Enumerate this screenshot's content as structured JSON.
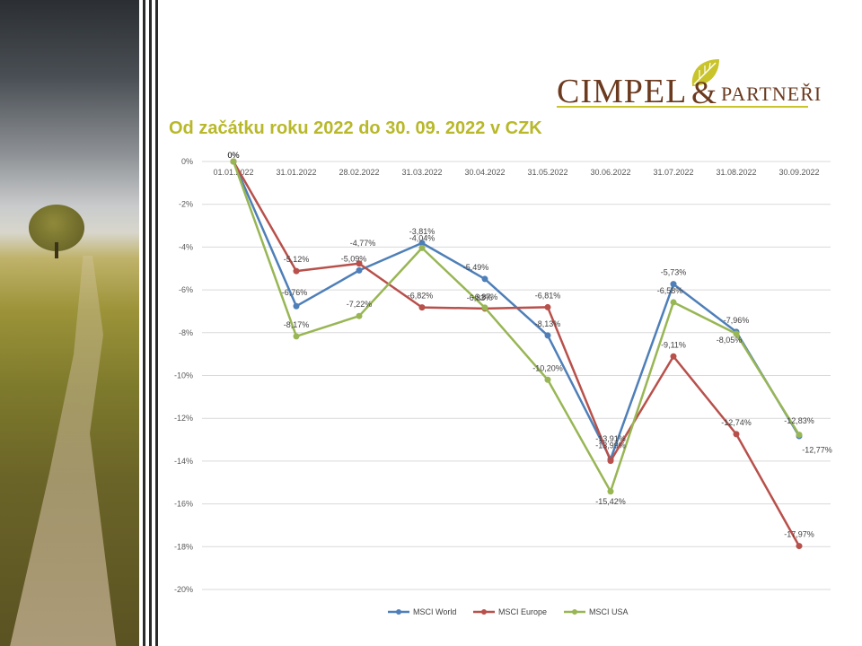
{
  "title": "Od začátku roku 2022 do 30. 09. 2022 v CZK",
  "logo": {
    "brand": "CIMPEL",
    "ampersand": "&",
    "suffix": "PARTNEŘI"
  },
  "colors": {
    "title": "#b8b82a",
    "brand": "#6b3a1f",
    "world": "#4e7fb8",
    "europe": "#b8504b",
    "usa": "#98b654",
    "grid": "#d9d9d9"
  },
  "chart_data": {
    "type": "line",
    "title": "",
    "xlabel": "",
    "ylabel": "",
    "ylim": [
      -20,
      0
    ],
    "y_ticks": [
      0,
      -2,
      -4,
      -6,
      -8,
      -10,
      -12,
      -14,
      -16,
      -18,
      -20
    ],
    "y_tick_labels": [
      "0%",
      "-2%",
      "-4%",
      "-6%",
      "-8%",
      "-10%",
      "-12%",
      "-14%",
      "-16%",
      "-18%",
      "-20%"
    ],
    "categories": [
      "01.01.2022",
      "31.01.2022",
      "28.02.2022",
      "31.03.2022",
      "30.04.2022",
      "31.05.2022",
      "30.06.2022",
      "31.07.2022",
      "31.08.2022",
      "30.09.2022"
    ],
    "grid": true,
    "legend_position": "bottom",
    "series": [
      {
        "name": "MSCI World",
        "color": "#4e7fb8",
        "values": [
          0,
          -6.76,
          -5.09,
          -3.81,
          -5.49,
          -8.13,
          -13.91,
          -5.73,
          -7.96,
          -12.83
        ],
        "labels": [
          "0%",
          "-6,76%",
          "-5,09%",
          "-3,81%",
          "-5,49%",
          "-8,13%",
          "-13,91%",
          "-5,73%",
          "-7,96%",
          "-12,83%"
        ]
      },
      {
        "name": "MSCI Europe",
        "color": "#b8504b",
        "values": [
          0,
          -5.12,
          -4.77,
          -6.82,
          -6.87,
          -6.81,
          -13.99,
          -9.11,
          -12.74,
          -17.97
        ],
        "labels": [
          "0%",
          "-5,12%",
          "-4,77%",
          "-6,82%",
          "-6,87%",
          "-6,81%",
          "-13,99%",
          "-9,11%",
          "-12,74%",
          "-17,97%"
        ]
      },
      {
        "name": "MSCI USA",
        "color": "#98b654",
        "values": [
          0,
          -8.17,
          -7.22,
          -4.04,
          -6.83,
          -10.2,
          -15.42,
          -6.58,
          -8.05,
          -12.77
        ],
        "labels": [
          "0%",
          "-8,17%",
          "-7,22%",
          "-4,04%",
          "-6,83%",
          "-10,20%",
          "-15,42%",
          "-6,58%",
          "-8,05%",
          "-12,77%"
        ]
      }
    ]
  }
}
